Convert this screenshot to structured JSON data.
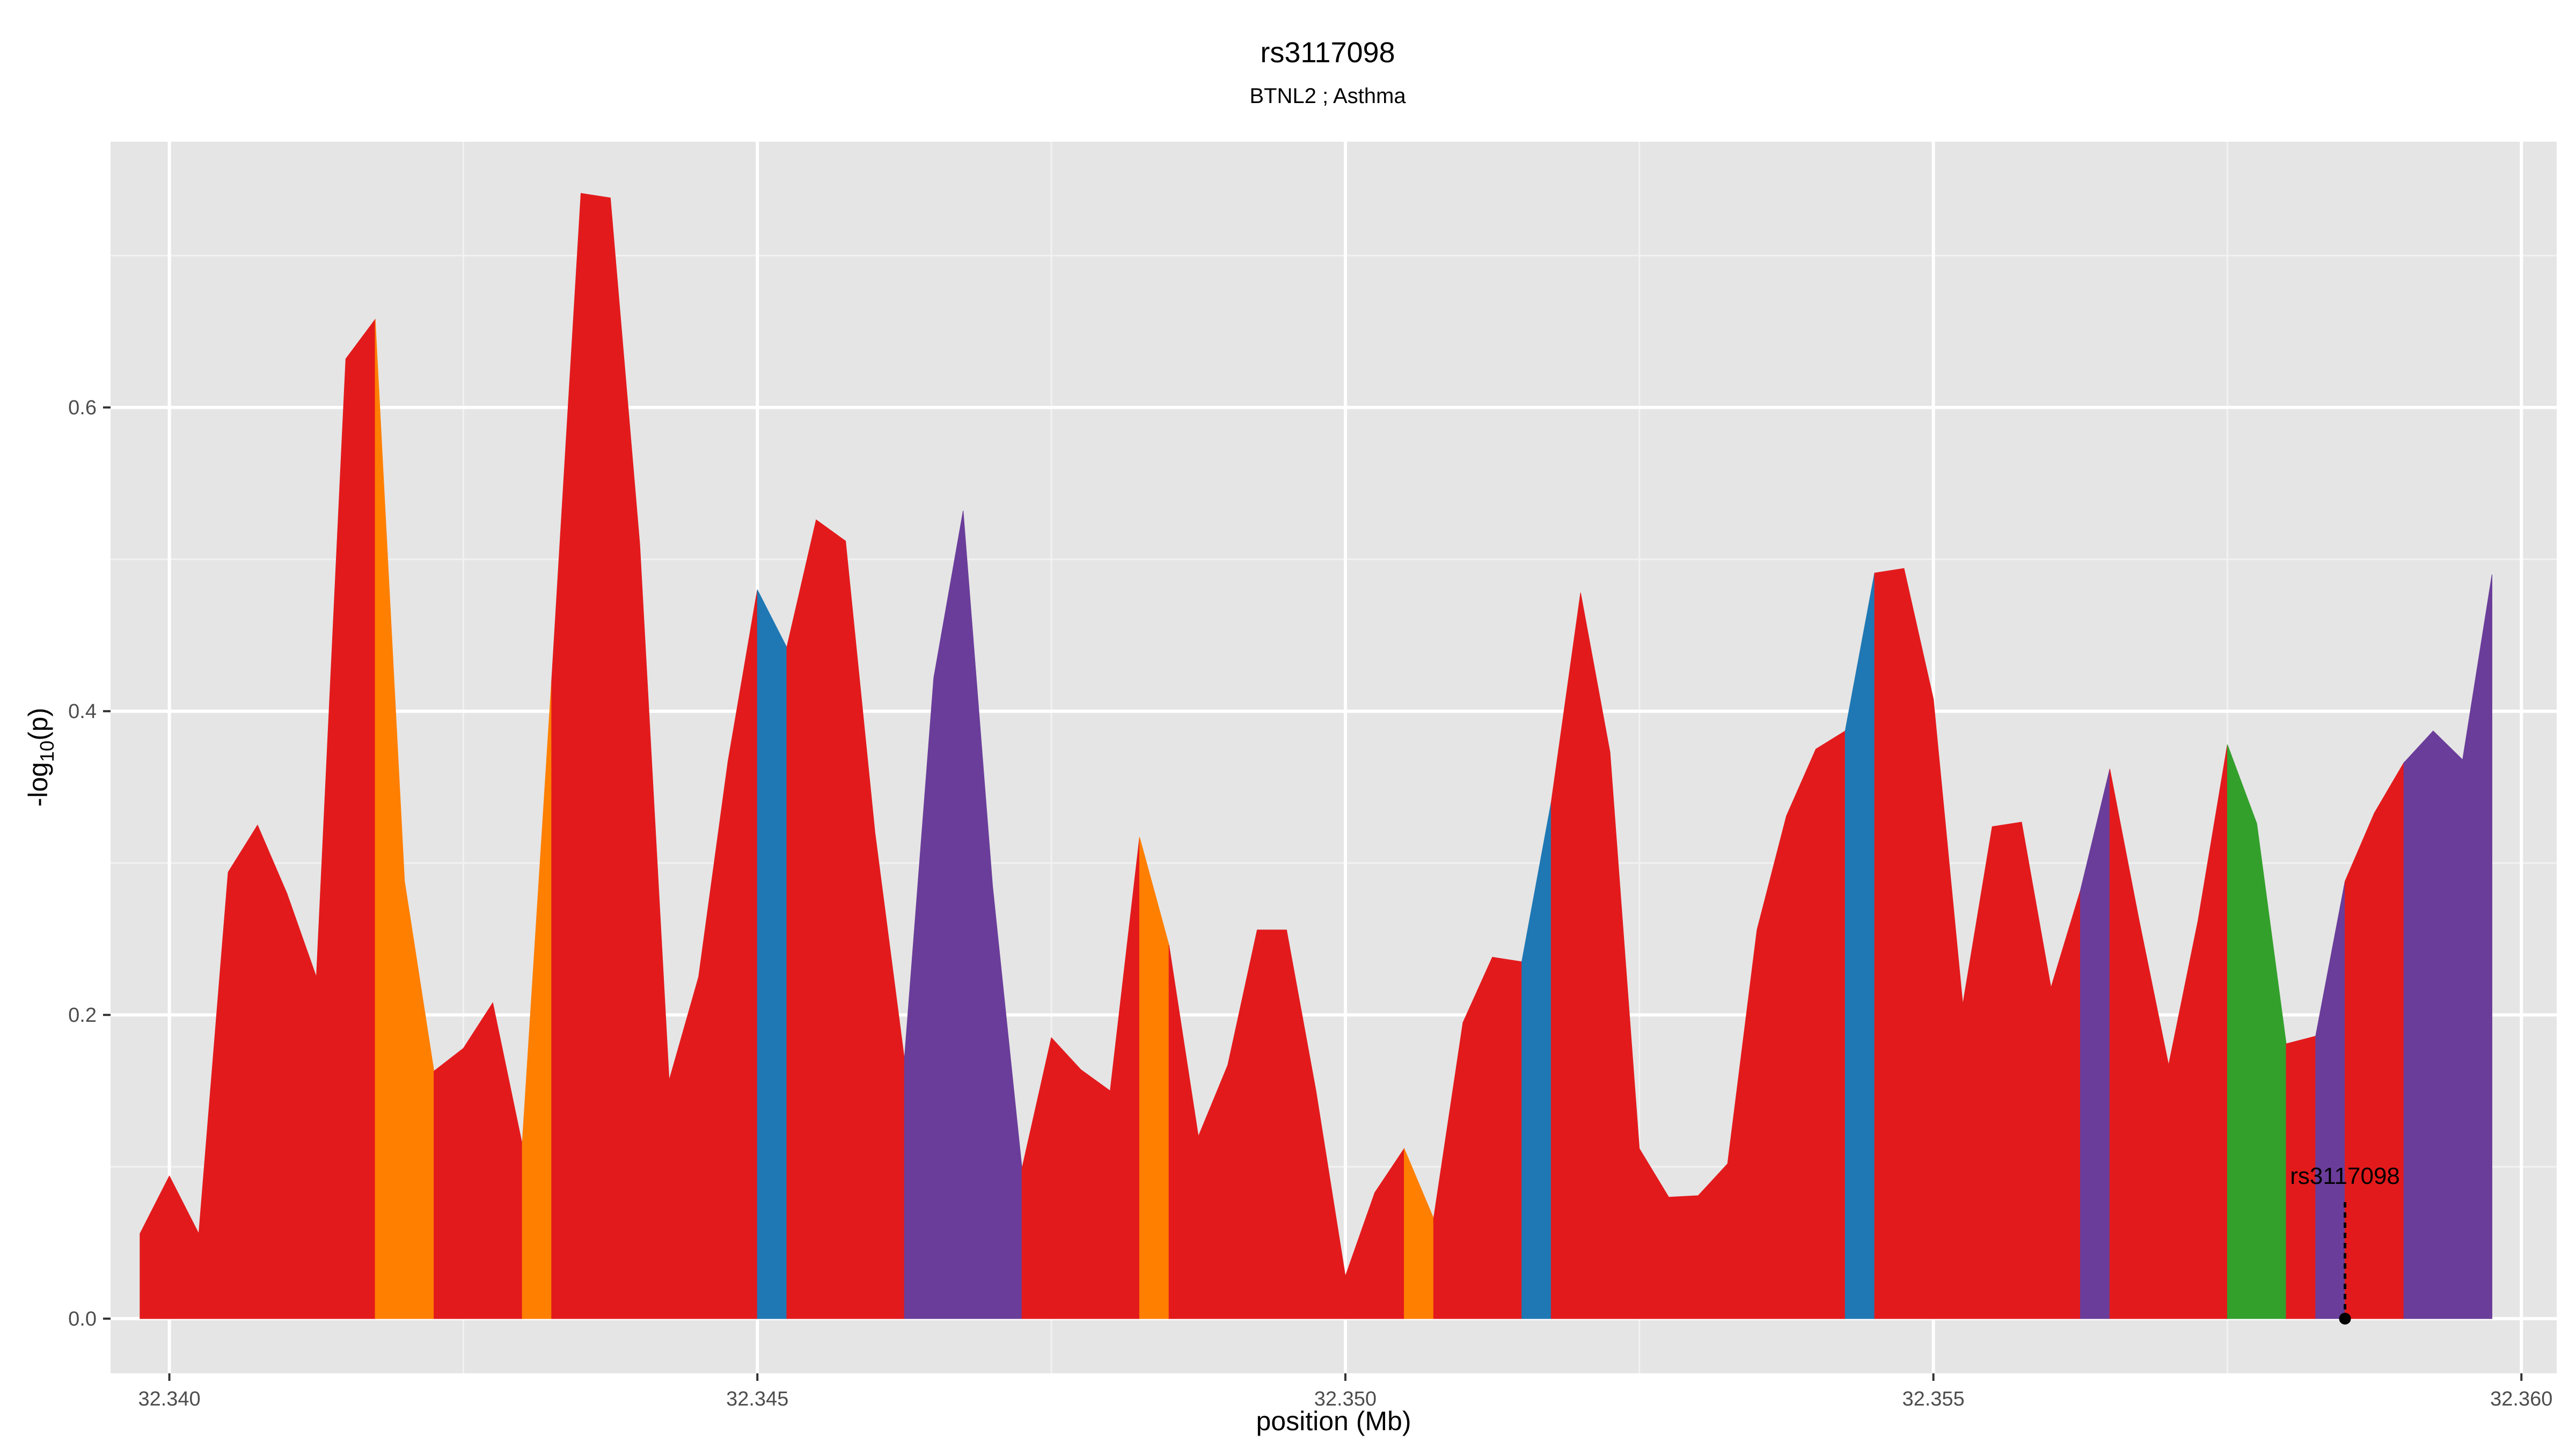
{
  "chart_data": {
    "type": "area",
    "title": "rs3117098",
    "subtitle": "BTNL2 ; Asthma",
    "xlabel": "position (Mb)",
    "ylabel_main": "-log",
    "ylabel_sub": "10",
    "ylabel_tail": "(p)",
    "xlim": [
      32.3395,
      32.3603
    ],
    "ylim": [
      -0.036,
      0.775
    ],
    "x_ticks": [
      32.34,
      32.345,
      32.35,
      32.355,
      32.36
    ],
    "x_tick_labels": [
      "32.340",
      "32.345",
      "32.350",
      "32.355",
      "32.360"
    ],
    "y_ticks": [
      0.0,
      0.2,
      0.4,
      0.6
    ],
    "y_tick_labels": [
      "0.0",
      "0.2",
      "0.4",
      "0.6"
    ],
    "grid": true,
    "colors": {
      "red": "#e31a1c",
      "orange": "#ff7f00",
      "blue": "#1f78b4",
      "purple": "#6a3d9a",
      "green": "#33a02c"
    },
    "series": [
      {
        "color": "red",
        "x": [
          32.33975,
          32.34,
          32.34025,
          32.3405,
          32.34075,
          32.341,
          32.34125,
          32.3415,
          32.34175
        ],
        "y": [
          0.056,
          0.094,
          0.056,
          0.294,
          0.325,
          0.28,
          0.225,
          0.632,
          0.658
        ]
      },
      {
        "color": "orange",
        "x": [
          32.34175,
          32.342,
          32.34225
        ],
        "y": [
          0.658,
          0.288,
          0.163
        ]
      },
      {
        "color": "red",
        "x": [
          32.34225,
          32.3425,
          32.34275,
          32.343
        ],
        "y": [
          0.163,
          0.178,
          0.208,
          0.115
        ]
      },
      {
        "color": "orange",
        "x": [
          32.343,
          32.34325
        ],
        "y": [
          0.115,
          0.42
        ]
      },
      {
        "color": "red",
        "x": [
          32.34325,
          32.3435,
          32.34375,
          32.344,
          32.34425,
          32.3445,
          32.34475,
          32.345
        ],
        "y": [
          0.42,
          0.741,
          0.738,
          0.51,
          0.157,
          0.225,
          0.367,
          0.48
        ]
      },
      {
        "color": "blue",
        "x": [
          32.345,
          32.34525
        ],
        "y": [
          0.48,
          0.442
        ]
      },
      {
        "color": "red",
        "x": [
          32.34525,
          32.3455,
          32.34575,
          32.346,
          32.34625
        ],
        "y": [
          0.442,
          0.526,
          0.512,
          0.32,
          0.171
        ]
      },
      {
        "color": "purple",
        "x": [
          32.34625,
          32.3465,
          32.34675,
          32.347,
          32.34725
        ],
        "y": [
          0.171,
          0.422,
          0.532,
          0.285,
          0.099
        ]
      },
      {
        "color": "red",
        "x": [
          32.34725,
          32.3475,
          32.34775,
          32.348,
          32.34825
        ],
        "y": [
          0.099,
          0.185,
          0.164,
          0.15,
          0.317
        ]
      },
      {
        "color": "orange",
        "x": [
          32.34825,
          32.3485
        ],
        "y": [
          0.317,
          0.246
        ]
      },
      {
        "color": "red",
        "x": [
          32.3485,
          32.34875,
          32.349,
          32.34925,
          32.3495,
          32.34975,
          32.35,
          32.35025,
          32.3505
        ],
        "y": [
          0.246,
          0.12,
          0.167,
          0.256,
          0.256,
          0.15,
          0.028,
          0.083,
          0.112
        ]
      },
      {
        "color": "orange",
        "x": [
          32.3505,
          32.35075
        ],
        "y": [
          0.112,
          0.066
        ]
      },
      {
        "color": "red",
        "x": [
          32.35075,
          32.351,
          32.35125,
          32.3515
        ],
        "y": [
          0.066,
          0.195,
          0.238,
          0.235
        ]
      },
      {
        "color": "blue",
        "x": [
          32.3515,
          32.35175
        ],
        "y": [
          0.235,
          0.34
        ]
      },
      {
        "color": "red",
        "x": [
          32.35175,
          32.352,
          32.35225,
          32.3525,
          32.35275,
          32.353,
          32.35325,
          32.3535,
          32.35375,
          32.354,
          32.35425
        ],
        "y": [
          0.34,
          0.478,
          0.373,
          0.112,
          0.08,
          0.081,
          0.102,
          0.256,
          0.331,
          0.375,
          0.387
        ]
      },
      {
        "color": "blue",
        "x": [
          32.35425,
          32.3545
        ],
        "y": [
          0.387,
          0.491
        ]
      },
      {
        "color": "red",
        "x": [
          32.3545,
          32.35475,
          32.355,
          32.35525,
          32.3555,
          32.35575,
          32.356,
          32.35625
        ],
        "y": [
          0.491,
          0.494,
          0.408,
          0.207,
          0.324,
          0.327,
          0.218,
          0.282
        ]
      },
      {
        "color": "purple",
        "x": [
          32.35625,
          32.3565
        ],
        "y": [
          0.282,
          0.362
        ]
      },
      {
        "color": "red",
        "x": [
          32.3565,
          32.35675,
          32.357,
          32.35725,
          32.3575
        ],
        "y": [
          0.362,
          0.262,
          0.167,
          0.262,
          0.378
        ]
      },
      {
        "color": "green",
        "x": [
          32.3575,
          32.35775,
          32.358
        ],
        "y": [
          0.378,
          0.326,
          0.181
        ]
      },
      {
        "color": "red",
        "x": [
          32.358,
          32.35825
        ],
        "y": [
          0.181,
          0.186
        ]
      },
      {
        "color": "purple",
        "x": [
          32.35825,
          32.3585
        ],
        "y": [
          0.186,
          0.288
        ]
      },
      {
        "color": "red",
        "x": [
          32.3585,
          32.35875,
          32.359
        ],
        "y": [
          0.288,
          0.333,
          0.366
        ]
      },
      {
        "color": "purple",
        "x": [
          32.359,
          32.35925,
          32.3595,
          32.35975
        ],
        "y": [
          0.366,
          0.387,
          0.368,
          0.49
        ]
      }
    ],
    "annotations": [
      {
        "label": "rs3117098",
        "x": 32.3585,
        "y": 0.0
      }
    ]
  }
}
